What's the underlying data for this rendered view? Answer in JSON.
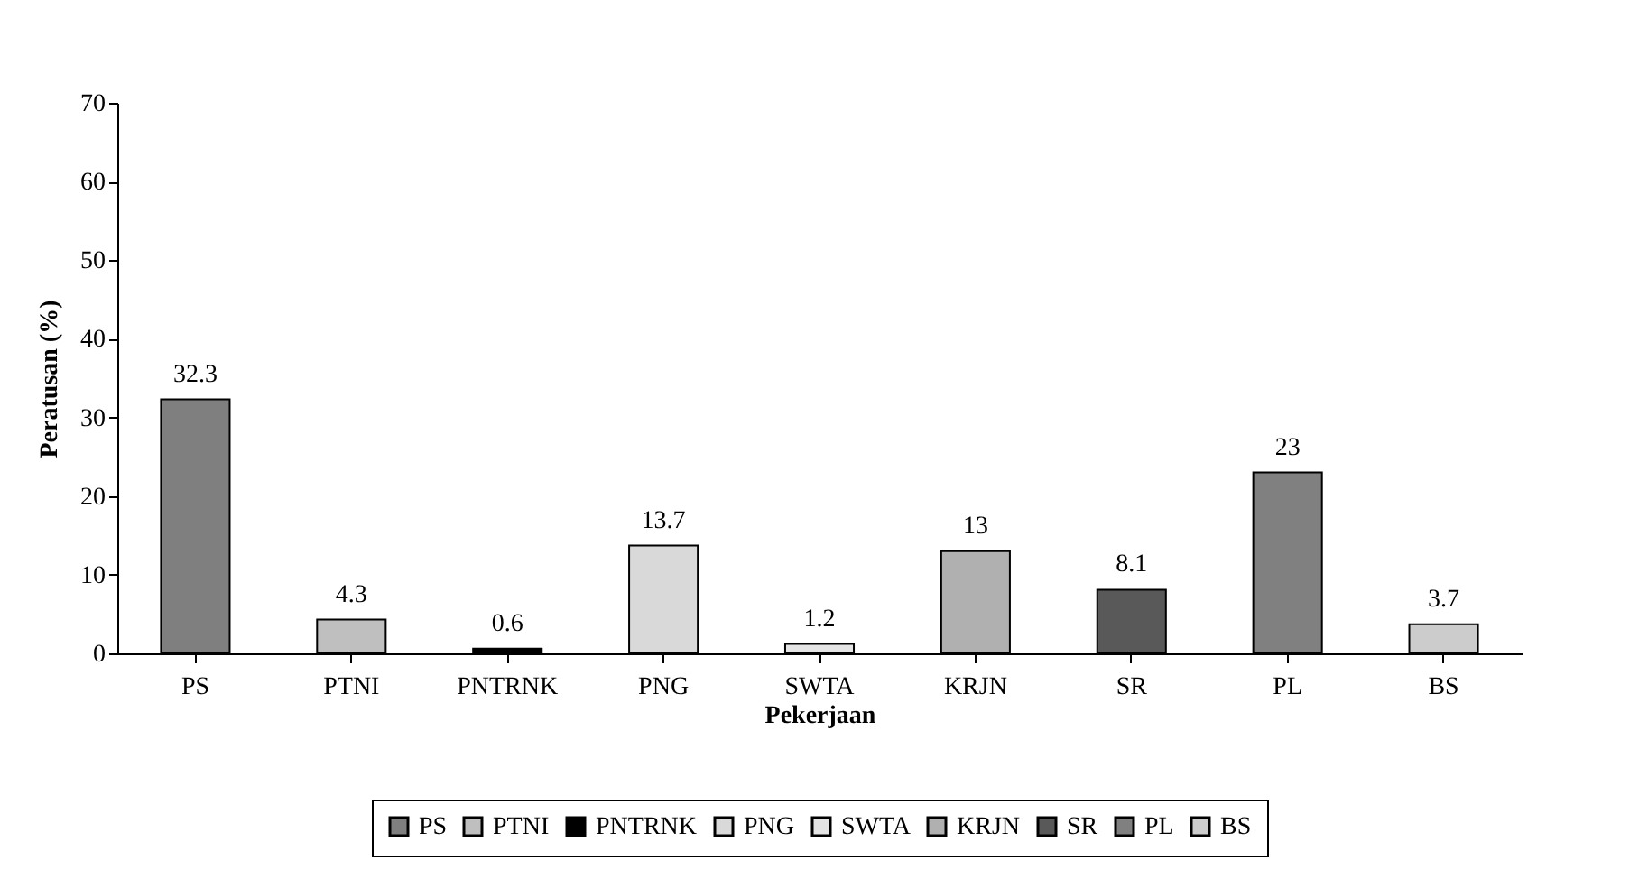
{
  "chart_data": {
    "type": "bar",
    "xlabel": "Pekerjaan",
    "ylabel": "Peratusan (%)",
    "categories": [
      "PS",
      "PTNI",
      "PNTRNK",
      "PNG",
      "SWTA",
      "KRJN",
      "SR",
      "PL",
      "BS"
    ],
    "series": [
      {
        "name": "PS",
        "color": "#7f7f7f",
        "values": [
          32.3,
          null,
          null,
          null,
          null,
          null,
          null,
          null,
          null
        ]
      },
      {
        "name": "PTNI",
        "color": "#bfbfbf",
        "values": [
          null,
          4.3,
          null,
          null,
          null,
          null,
          null,
          null,
          null
        ]
      },
      {
        "name": "PNTRNK",
        "color": "#000000",
        "values": [
          null,
          null,
          0.6,
          null,
          null,
          null,
          null,
          null,
          null
        ]
      },
      {
        "name": "PNG",
        "color": "#d9d9d9",
        "values": [
          null,
          null,
          null,
          13.7,
          null,
          null,
          null,
          null,
          null
        ]
      },
      {
        "name": "SWTA",
        "color": "#e4e4e4",
        "values": [
          null,
          null,
          null,
          null,
          1.2,
          null,
          null,
          null,
          null
        ]
      },
      {
        "name": "KRJN",
        "color": "#b0b0b0",
        "values": [
          null,
          null,
          null,
          null,
          null,
          13,
          null,
          null,
          null
        ]
      },
      {
        "name": "SR",
        "color": "#595959",
        "values": [
          null,
          null,
          null,
          null,
          null,
          null,
          8.1,
          null,
          null
        ]
      },
      {
        "name": "PL",
        "color": "#808080",
        "values": [
          null,
          null,
          null,
          null,
          null,
          null,
          null,
          23,
          null
        ]
      },
      {
        "name": "BS",
        "color": "#cccccc",
        "values": [
          null,
          null,
          null,
          null,
          null,
          null,
          null,
          null,
          3.7
        ]
      }
    ],
    "ylim": [
      0,
      70
    ],
    "yticks": [
      0,
      10,
      20,
      30,
      40,
      50,
      60,
      70
    ],
    "grid": false,
    "legend": "bottom",
    "data_labels": true
  }
}
